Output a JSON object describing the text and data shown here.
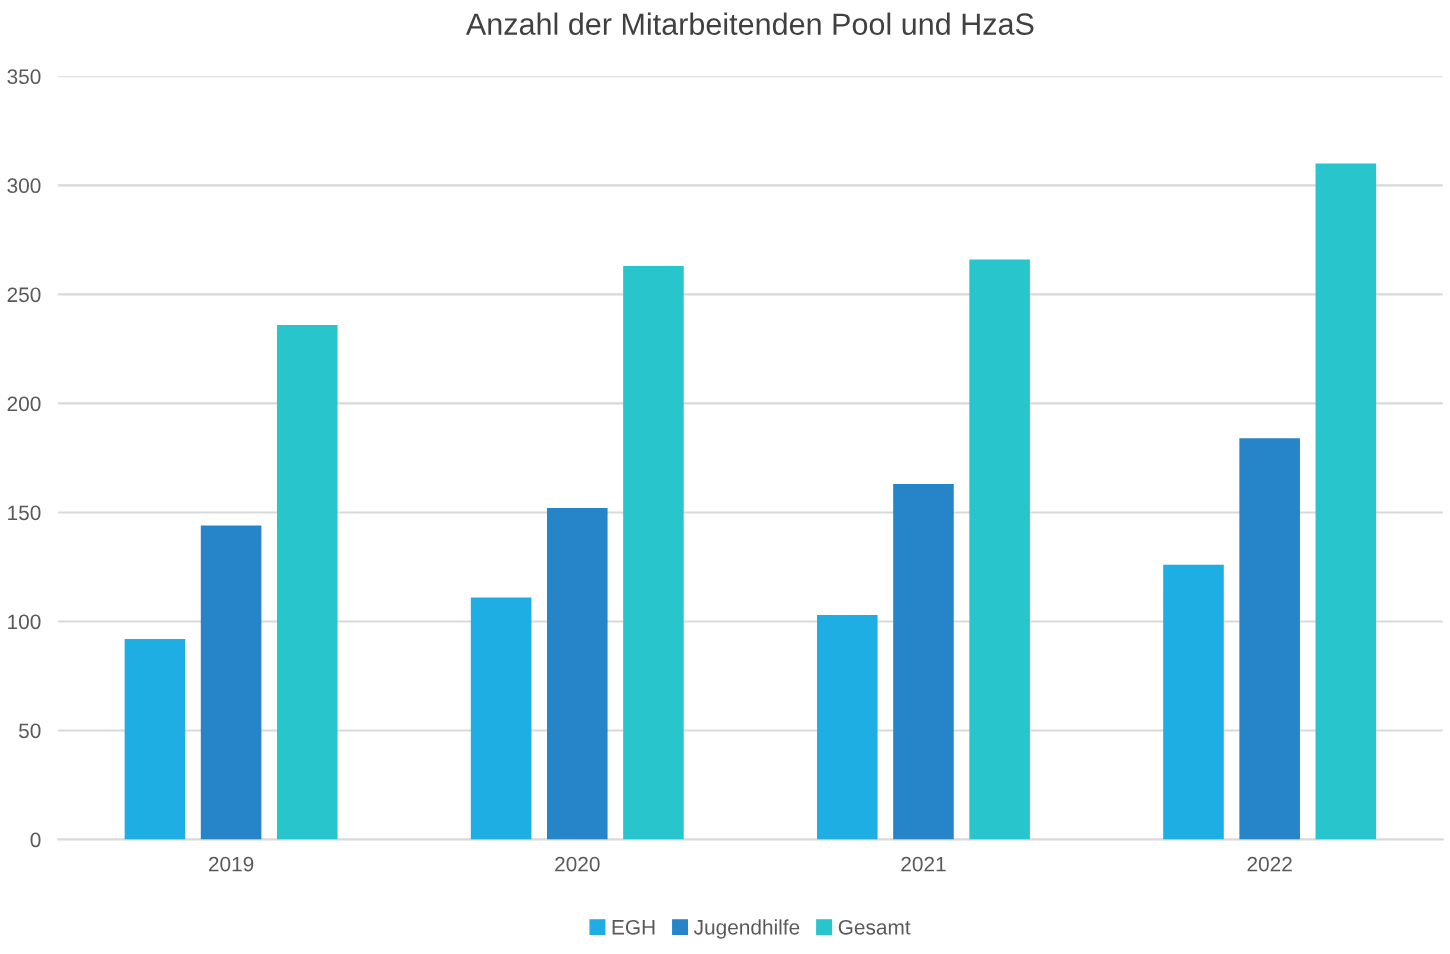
{
  "chart_data": {
    "type": "bar",
    "title": "Anzahl der Mitarbeitenden Pool und HzaS",
    "categories": [
      "2019",
      "2020",
      "2021",
      "2022"
    ],
    "series": [
      {
        "name": "EGH",
        "color": "#1eaee3",
        "values": [
          92,
          111,
          103,
          126
        ]
      },
      {
        "name": "Jugendhilfe",
        "color": "#2684c8",
        "values": [
          144,
          152,
          163,
          184
        ]
      },
      {
        "name": "Gesamt",
        "color": "#28c5cc",
        "values": [
          236,
          263,
          266,
          310
        ]
      }
    ],
    "ylim": [
      0,
      350
    ],
    "yticks": [
      0,
      50,
      100,
      150,
      200,
      250,
      300,
      350
    ],
    "grid": "y",
    "legend": "bottom"
  }
}
